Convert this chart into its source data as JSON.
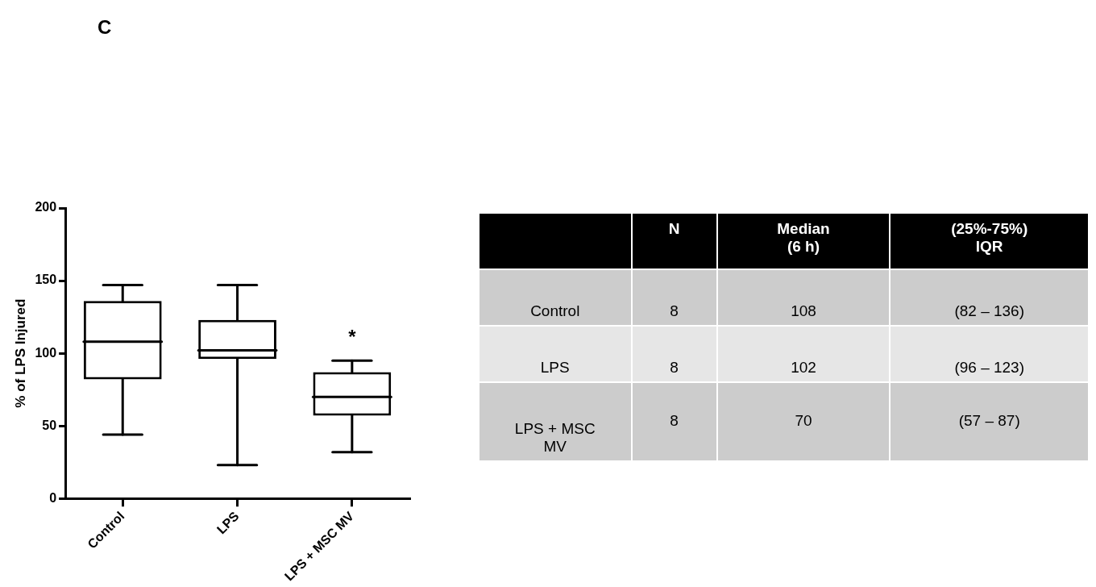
{
  "chart_data": [
    {
      "type": "box",
      "title": "C",
      "ylabel": "% of LPS Injured",
      "categories": [
        "Control",
        "LPS",
        "LPS + MSC MV"
      ],
      "boxes": [
        {
          "low": 44,
          "q1": 82,
          "median": 108,
          "q3": 136,
          "high": 147
        },
        {
          "low": 23,
          "q1": 96,
          "median": 102,
          "q3": 123,
          "high": 147
        },
        {
          "low": 32,
          "q1": 57,
          "median": 70,
          "q3": 87,
          "high": 95
        }
      ],
      "color": "#000000",
      "ylim": [
        0,
        200
      ],
      "yticks": [
        0,
        50,
        100,
        150,
        200
      ],
      "grid": false,
      "legend": false,
      "annotations": [
        "*"
      ]
    },
    {
      "type": "other",
      "categories": [
        null,
        "N",
        "Median\n(6 h)",
        "(25%-75%)\nIQR"
      ],
      "y_categories": [
        "Control",
        "LPS",
        "LPS + MSC\nMV"
      ],
      "cell_labels": [
        [
          "8",
          "108",
          "(82 – 136)"
        ],
        [
          "8",
          "102",
          "(96 – 123)"
        ],
        [
          "8",
          "70",
          "(57 – 87)"
        ]
      ]
    }
  ]
}
